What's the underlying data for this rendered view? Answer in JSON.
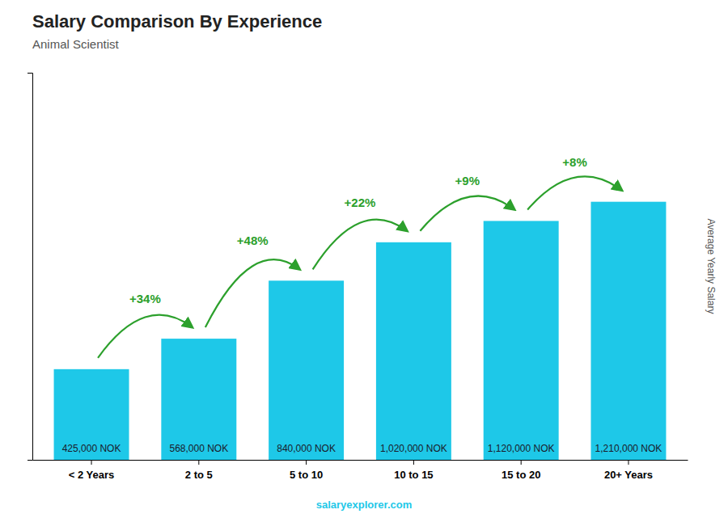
{
  "chart_data": {
    "type": "bar",
    "title": "Salary Comparison By Experience",
    "subtitle": "Animal Scientist",
    "ylabel": "Average Yearly Salary",
    "categories": [
      "< 2 Years",
      "2 to 5",
      "5 to 10",
      "10 to 15",
      "15 to 20",
      "20+ Years"
    ],
    "values": [
      425000,
      568000,
      840000,
      1020000,
      1120000,
      1210000
    ],
    "value_labels": [
      "425,000 NOK",
      "568,000 NOK",
      "840,000 NOK",
      "1,020,000 NOK",
      "1,120,000 NOK",
      "1,210,000 NOK"
    ],
    "data_labels": true,
    "annotations": [
      null,
      "+34%",
      "+48%",
      "+22%",
      "+9%",
      "+8%"
    ],
    "color": "#1EC8E8",
    "ylim": [
      0,
      1815000
    ],
    "tick_labels": "x",
    "grid": false,
    "watermark": "salaryexplorer.com"
  }
}
